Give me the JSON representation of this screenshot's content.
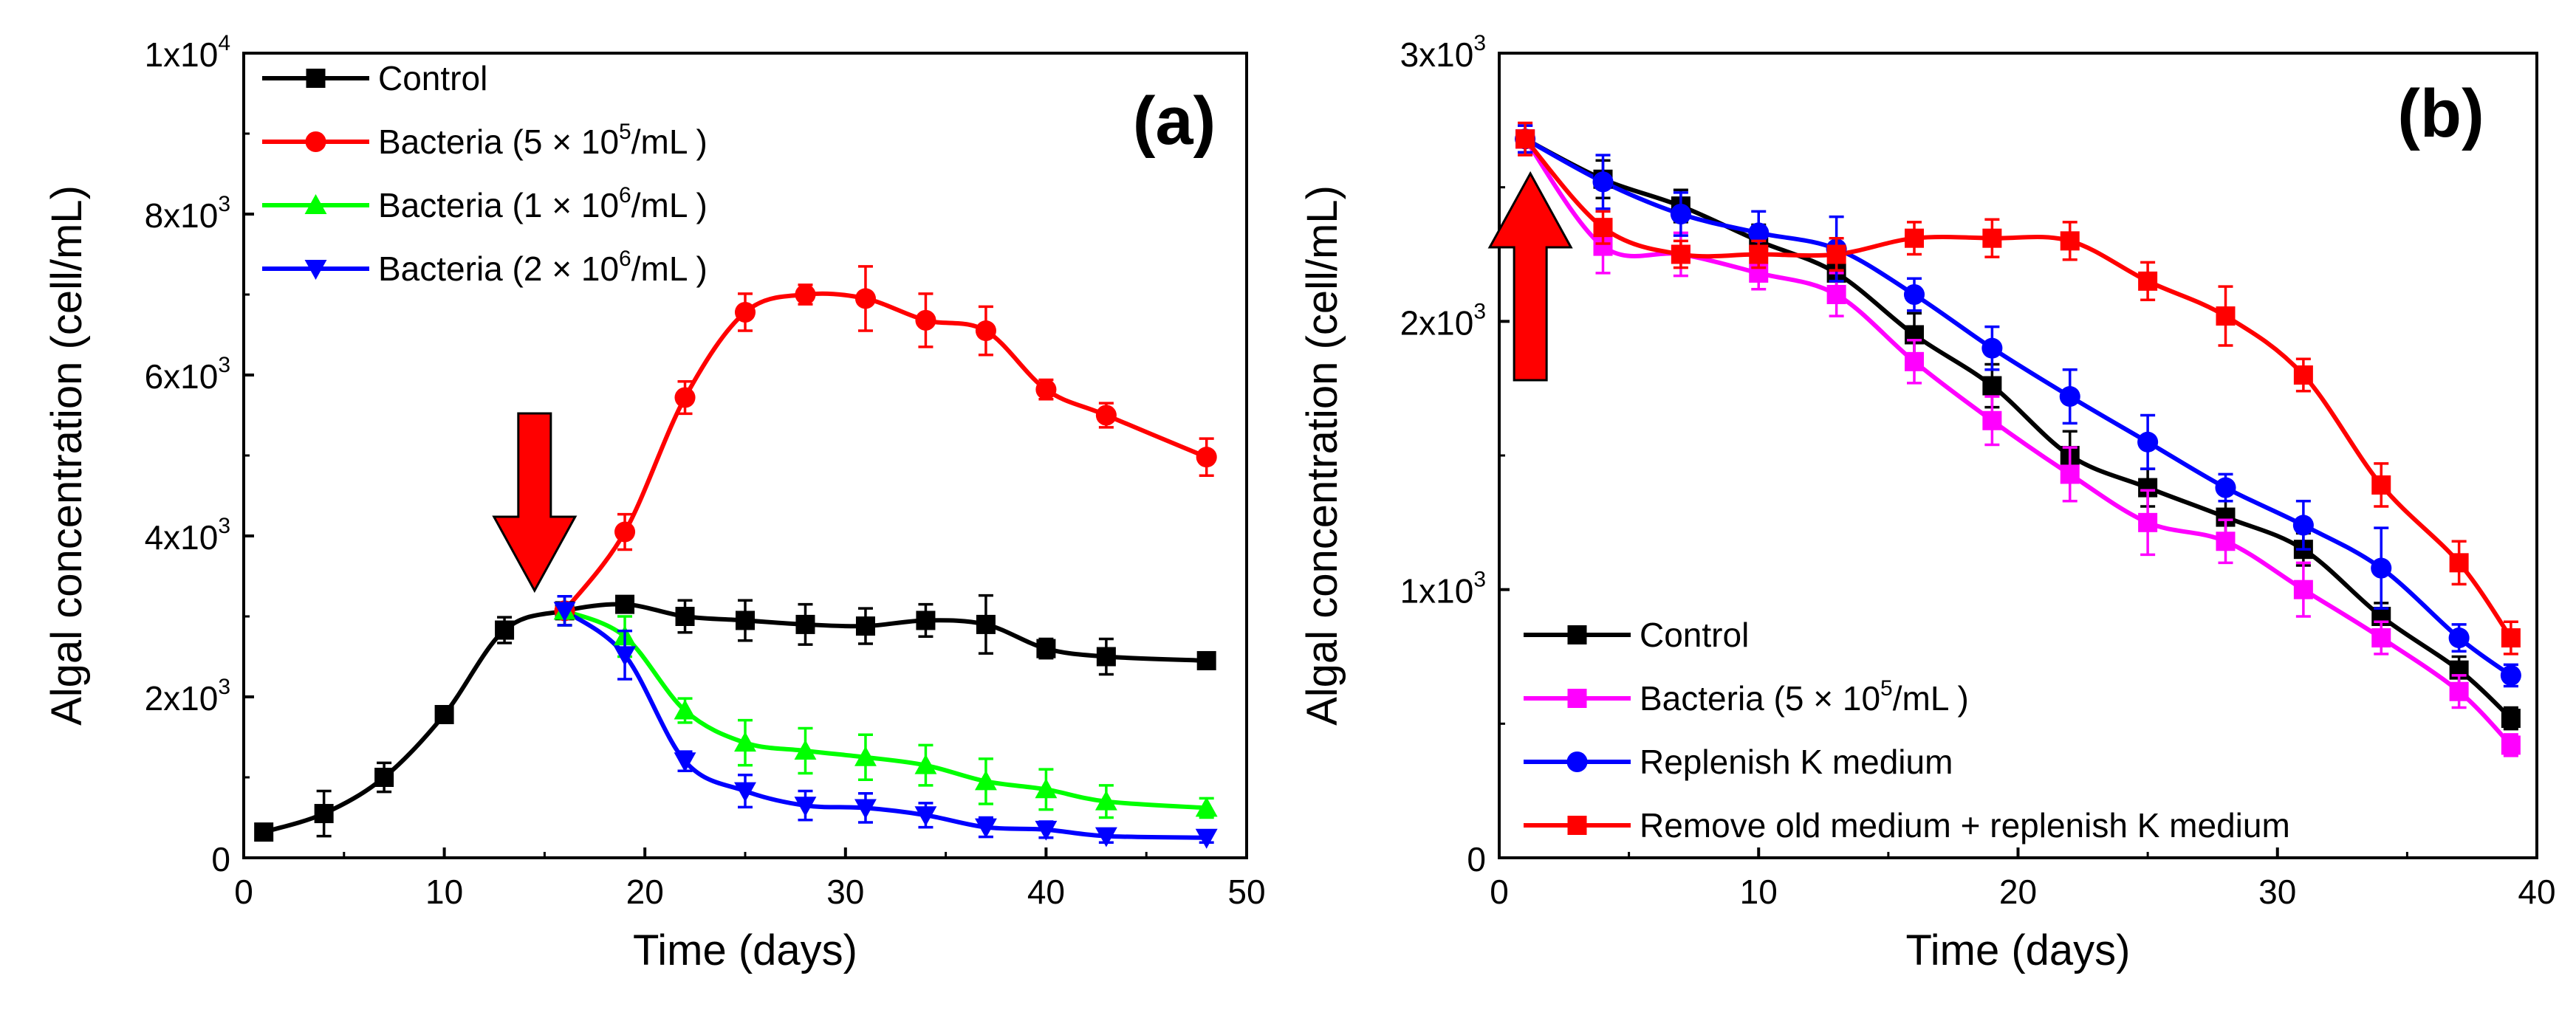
{
  "chart_data": [
    {
      "type": "line",
      "panel_label": "(a)",
      "xlabel": "Time (days)",
      "ylabel": "Algal concentration (cell/mL)",
      "xlim": [
        0,
        50
      ],
      "ylim": [
        0,
        10000
      ],
      "xticks": [
        0,
        10,
        20,
        30,
        40,
        50
      ],
      "xtick_labels": [
        "0",
        "10",
        "20",
        "30",
        "40",
        "50"
      ],
      "yticks": [
        0,
        2000,
        4000,
        6000,
        8000,
        10000
      ],
      "ytick_labels": [
        {
          "value": 0,
          "base": "0",
          "exp": ""
        },
        {
          "value": 2000,
          "base": "2x10",
          "exp": "3"
        },
        {
          "value": 4000,
          "base": "4x10",
          "exp": "3"
        },
        {
          "value": 6000,
          "base": "6x10",
          "exp": "3"
        },
        {
          "value": 8000,
          "base": "8x10",
          "exp": "3"
        },
        {
          "value": 10000,
          "base": "1x10",
          "exp": "4"
        }
      ],
      "legend_position": "top-left",
      "annotation": {
        "type": "arrow-down",
        "x": 14.5,
        "label": "red arrow marking bacteria addition"
      },
      "series": [
        {
          "name": "Control",
          "legend_parts": [
            "Control"
          ],
          "color": "#000000",
          "marker": "square",
          "x": [
            1,
            4,
            7,
            10,
            13,
            16,
            19,
            22,
            25,
            28,
            31,
            34,
            37,
            40,
            43,
            48
          ],
          "y": [
            320,
            550,
            1000,
            1780,
            2830,
            3070,
            3150,
            3000,
            2950,
            2900,
            2880,
            2950,
            2900,
            2600,
            2500,
            2450
          ],
          "err": [
            80,
            280,
            180,
            80,
            160,
            180,
            80,
            200,
            250,
            250,
            220,
            200,
            360,
            120,
            220,
            80
          ]
        },
        {
          "name": "Bacteria (5 × 10⁵/mL )",
          "legend_parts": [
            "Bacteria (5 × 10",
            "5",
            "/mL )"
          ],
          "color": "#ff0000",
          "marker": "circle",
          "x": [
            16,
            19,
            22,
            25,
            28,
            31,
            34,
            37,
            40,
            43,
            48
          ],
          "y": [
            3070,
            4050,
            5720,
            6780,
            7000,
            6950,
            6680,
            6550,
            5820,
            5500,
            4980
          ],
          "err": [
            180,
            220,
            200,
            230,
            120,
            400,
            330,
            300,
            120,
            150,
            230
          ]
        },
        {
          "name": "Bacteria (1 × 10⁶/mL )",
          "legend_parts": [
            "Bacteria (1 × 10",
            "6",
            "/mL )"
          ],
          "color": "#00ff00",
          "marker": "triangle-up",
          "x": [
            16,
            19,
            22,
            25,
            28,
            31,
            34,
            37,
            40,
            43,
            48
          ],
          "y": [
            3070,
            2750,
            1830,
            1430,
            1330,
            1250,
            1150,
            950,
            850,
            700,
            620
          ],
          "err": [
            180,
            250,
            150,
            280,
            280,
            280,
            250,
            280,
            250,
            200,
            120
          ]
        },
        {
          "name": "Bacteria (2 × 10⁶/mL )",
          "legend_parts": [
            "Bacteria (2 × 10",
            "6",
            "/mL )"
          ],
          "color": "#0000ff",
          "marker": "triangle-down",
          "x": [
            16,
            19,
            22,
            25,
            28,
            31,
            34,
            37,
            40,
            43,
            48
          ],
          "y": [
            3070,
            2520,
            1200,
            830,
            650,
            620,
            530,
            380,
            350,
            270,
            250
          ],
          "err": [
            180,
            300,
            120,
            200,
            180,
            180,
            150,
            120,
            100,
            80,
            60
          ]
        }
      ]
    },
    {
      "type": "line",
      "panel_label": "(b)",
      "xlabel": "Time (days)",
      "ylabel": "Algal concentration (cell/mL)",
      "xlim": [
        0,
        40
      ],
      "ylim": [
        0,
        3000
      ],
      "xticks": [
        0,
        10,
        20,
        30,
        40
      ],
      "xtick_labels": [
        "0",
        "10",
        "20",
        "30",
        "40"
      ],
      "yticks": [
        0,
        1000,
        2000,
        3000
      ],
      "ytick_labels": [
        {
          "value": 0,
          "base": "0",
          "exp": ""
        },
        {
          "value": 1000,
          "base": "1x10",
          "exp": "3"
        },
        {
          "value": 2000,
          "base": "2x10",
          "exp": "3"
        },
        {
          "value": 3000,
          "base": "3x10",
          "exp": "3"
        }
      ],
      "legend_position": "bottom-right",
      "annotation": {
        "type": "arrow-up",
        "x": 1.2,
        "label": "red arrow marking treatment start"
      },
      "series": [
        {
          "name": "Control",
          "legend_parts": [
            "Control"
          ],
          "color": "#000000",
          "marker": "square",
          "x": [
            1,
            4,
            7,
            10,
            13,
            16,
            19,
            22,
            25,
            28,
            31,
            34,
            37,
            39
          ],
          "y": [
            2680,
            2530,
            2430,
            2300,
            2180,
            1950,
            1760,
            1500,
            1380,
            1270,
            1150,
            900,
            700,
            520
          ],
          "err": [
            50,
            70,
            60,
            60,
            60,
            80,
            80,
            90,
            70,
            60,
            60,
            50,
            50,
            40
          ]
        },
        {
          "name": "Bacteria (5 × 10⁵/mL )",
          "legend_parts": [
            "Bacteria (5 × 10",
            "5",
            "/mL )"
          ],
          "color": "#ff00ff",
          "marker": "square",
          "x": [
            1,
            4,
            7,
            10,
            13,
            16,
            19,
            22,
            25,
            28,
            31,
            34,
            37,
            39
          ],
          "y": [
            2680,
            2280,
            2250,
            2180,
            2100,
            1850,
            1630,
            1430,
            1250,
            1180,
            1000,
            820,
            620,
            420
          ],
          "err": [
            50,
            100,
            80,
            60,
            80,
            80,
            90,
            100,
            120,
            80,
            100,
            60,
            60,
            40
          ]
        },
        {
          "name": "Replenish K medium",
          "legend_parts": [
            "Replenish K medium"
          ],
          "color": "#0000ff",
          "marker": "circle",
          "x": [
            1,
            4,
            7,
            10,
            13,
            16,
            19,
            22,
            25,
            28,
            31,
            34,
            37,
            39
          ],
          "y": [
            2680,
            2520,
            2400,
            2330,
            2270,
            2100,
            1900,
            1720,
            1550,
            1380,
            1240,
            1080,
            820,
            680
          ],
          "err": [
            50,
            100,
            80,
            80,
            120,
            60,
            80,
            100,
            100,
            50,
            90,
            150,
            50,
            40
          ]
        },
        {
          "name": "Remove old medium + replenish K medium",
          "legend_parts": [
            "Remove old medium + replenish K medium"
          ],
          "color": "#ff0000",
          "marker": "square",
          "x": [
            1,
            4,
            7,
            10,
            13,
            16,
            19,
            22,
            25,
            28,
            31,
            34,
            37,
            39
          ],
          "y": [
            2680,
            2350,
            2250,
            2250,
            2250,
            2310,
            2310,
            2300,
            2150,
            2020,
            1800,
            1390,
            1100,
            820
          ],
          "err": [
            60,
            60,
            50,
            50,
            60,
            60,
            70,
            70,
            70,
            110,
            60,
            80,
            80,
            60
          ]
        }
      ]
    }
  ]
}
